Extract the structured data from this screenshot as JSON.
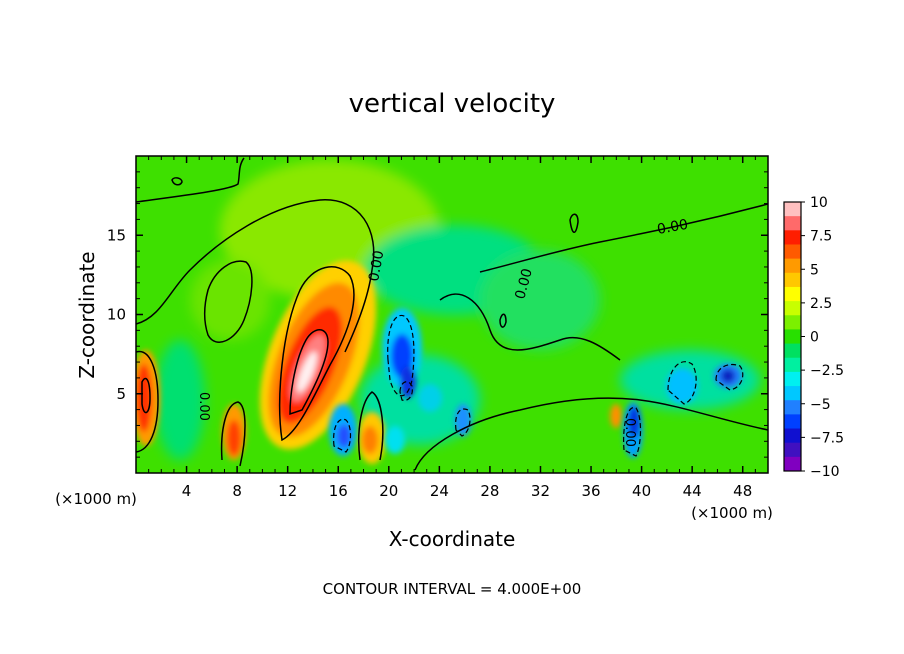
{
  "chart_data": {
    "type": "heatmap",
    "title": "vertical velocity",
    "xlabel": "X-coordinate",
    "ylabel": "Z-coordinate",
    "x_unit_label": "(×1000 m)",
    "x_unit_label_right": "(×1000 m)",
    "footer": "CONTOUR INTERVAL = 4.000E+00",
    "x_ticks": [
      "4",
      "8",
      "12",
      "16",
      "20",
      "24",
      "28",
      "32",
      "36",
      "40",
      "44",
      "48"
    ],
    "y_ticks": [
      "5",
      "10",
      "15"
    ],
    "xlim": [
      0,
      50
    ],
    "ylim": [
      0,
      20
    ],
    "contour_labels": [
      "0.00",
      "0.00",
      "0.00",
      "0.00",
      "0.00"
    ],
    "colorbar": {
      "ticks": [
        "10",
        "7.5",
        "5",
        "2.5",
        "0",
        "−2.5",
        "−5",
        "−7.5",
        "−10"
      ],
      "range": [
        -10,
        10
      ],
      "colors": [
        "#ffc0c0",
        "#ff6a6a",
        "#ff1e00",
        "#ff5a00",
        "#ff9a00",
        "#ffc800",
        "#ffff00",
        "#c8ff00",
        "#7cf000",
        "#28e000",
        "#00e060",
        "#00f0a0",
        "#00f0f0",
        "#00c8ff",
        "#2080ff",
        "#0040ff",
        "#1010d0",
        "#4010c0",
        "#8000c0"
      ]
    },
    "features": [
      {
        "kind": "updraft",
        "x": 14.3,
        "z": 7.5,
        "peak": 10
      },
      {
        "kind": "updraft",
        "x": 0.8,
        "z": 5,
        "peak": 6
      },
      {
        "kind": "updraft",
        "x": 7.8,
        "z": 2.5,
        "peak": 6
      },
      {
        "kind": "updraft",
        "x": 18.6,
        "z": 2.2,
        "peak": 5
      },
      {
        "kind": "updraft",
        "x": 38.3,
        "z": 3.5,
        "peak": 4
      },
      {
        "kind": "downdraft",
        "x": 21.2,
        "z": 7,
        "peak": -7.5
      },
      {
        "kind": "downdraft",
        "x": 16.3,
        "z": 2.2,
        "peak": -6
      },
      {
        "kind": "downdraft",
        "x": 21.5,
        "z": 5,
        "peak": -7
      },
      {
        "kind": "downdraft",
        "x": 25.8,
        "z": 3.2,
        "peak": -5
      },
      {
        "kind": "downdraft",
        "x": 39.5,
        "z": 3.5,
        "peak": -7.5
      },
      {
        "kind": "downdraft",
        "x": 46.7,
        "z": 6,
        "peak": -7.5
      }
    ]
  }
}
